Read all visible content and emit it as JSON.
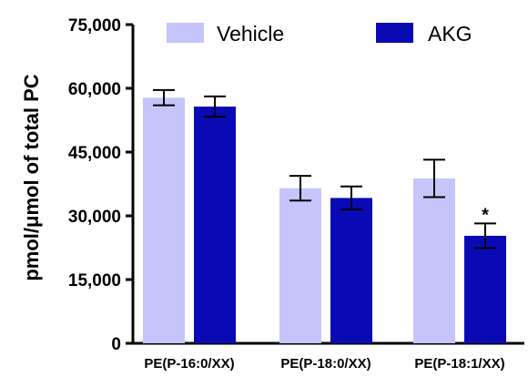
{
  "chart_data": {
    "type": "bar",
    "title": "",
    "xlabel": "",
    "ylabel": "pmol/μmol of total PC",
    "ylim": [
      0,
      75000
    ],
    "yticks": [
      "0",
      "15,000",
      "30,000",
      "45,000",
      "60,000",
      "75,000"
    ],
    "ytick_values": [
      0,
      15000,
      30000,
      45000,
      60000,
      75000
    ],
    "categories": [
      "PE(P-16:0/XX)",
      "PE(P-18:0/XX)",
      "PE(P-18:1/XX)"
    ],
    "series": [
      {
        "name": "Vehicle",
        "color": "#c5c5fb",
        "values": [
          57800,
          36500,
          38800
        ],
        "errors": [
          1800,
          2900,
          4400
        ]
      },
      {
        "name": "AKG",
        "color": "#0a0ab4",
        "values": [
          55700,
          34200,
          25300
        ],
        "errors": [
          2400,
          2700,
          2900
        ]
      }
    ],
    "annotations": [
      {
        "text": "*",
        "category_index": 2,
        "series_index": 1
      }
    ],
    "legend": {
      "position": "top"
    },
    "grid": false
  }
}
